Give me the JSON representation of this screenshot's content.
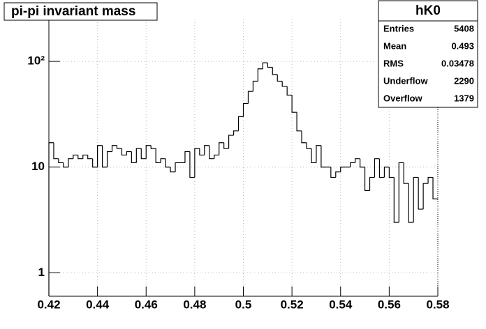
{
  "chart_data": {
    "type": "histogram",
    "title": "pi-pi invariant mass",
    "stats": {
      "title": "hK0",
      "rows": [
        [
          "Entries",
          "5408"
        ],
        [
          "Mean",
          "0.493"
        ],
        [
          "RMS",
          "0.03478"
        ],
        [
          "Underflow",
          "2290"
        ],
        [
          "Overflow",
          "1379"
        ]
      ]
    },
    "bins": [
      0.42,
      0.422,
      0.424,
      0.426,
      0.428,
      0.43,
      0.432,
      0.434,
      0.436,
      0.438,
      0.44,
      0.442,
      0.444,
      0.446,
      0.448,
      0.45,
      0.452,
      0.454,
      0.456,
      0.458,
      0.46,
      0.462,
      0.464,
      0.466,
      0.468,
      0.47,
      0.472,
      0.474,
      0.476,
      0.478,
      0.48,
      0.482,
      0.484,
      0.486,
      0.488,
      0.49,
      0.492,
      0.494,
      0.496,
      0.498,
      0.5,
      0.502,
      0.504,
      0.506,
      0.508,
      0.51,
      0.512,
      0.514,
      0.516,
      0.518,
      0.52,
      0.522,
      0.524,
      0.526,
      0.528,
      0.53,
      0.532,
      0.534,
      0.536,
      0.538,
      0.54,
      0.542,
      0.544,
      0.546,
      0.548,
      0.55,
      0.552,
      0.554,
      0.556,
      0.558,
      0.56,
      0.562,
      0.564,
      0.566,
      0.568,
      0.57,
      0.572,
      0.574,
      0.576,
      0.578,
      0.58
    ],
    "values": [
      17,
      12,
      11,
      10,
      12,
      13,
      12,
      13,
      12,
      10,
      16,
      10,
      14,
      16,
      15,
      13,
      14,
      11,
      15,
      12,
      16,
      15,
      11,
      12,
      10,
      9,
      11,
      11,
      14,
      8,
      15,
      13,
      16,
      12,
      13,
      17,
      15,
      20,
      22,
      30,
      40,
      52,
      65,
      85,
      97,
      88,
      75,
      65,
      58,
      48,
      33,
      22,
      17,
      15,
      11,
      16,
      10,
      10,
      8,
      9,
      10,
      10,
      11,
      12,
      10,
      6,
      8,
      12,
      8,
      10,
      8,
      3,
      11,
      7,
      3,
      8,
      4,
      7,
      8,
      5
    ],
    "color": "#000000",
    "log_y": true,
    "grid": true,
    "xlim": [
      0.42,
      0.58
    ],
    "xticks": [
      0.42,
      0.44,
      0.46,
      0.48,
      0.5,
      0.52,
      0.54,
      0.56,
      0.58
    ],
    "ylim": [
      0.6,
      249
    ],
    "yticks": [
      1,
      10,
      {
        "value": 100,
        "label": "10²"
      }
    ]
  }
}
